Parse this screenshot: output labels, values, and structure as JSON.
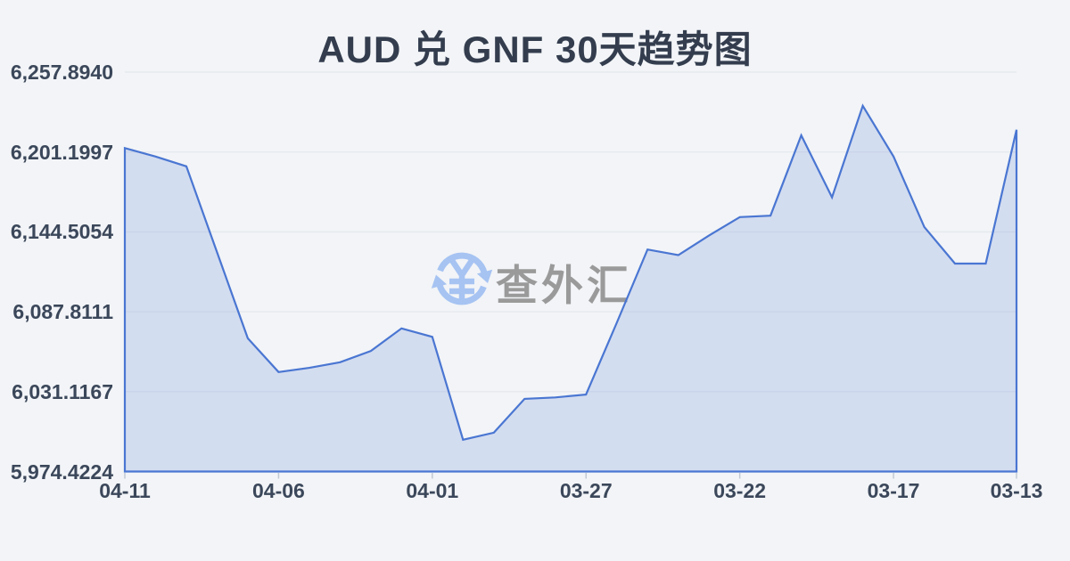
{
  "page": {
    "title": "AUD 兑 GNF 30天趋势图"
  },
  "watermark": {
    "text": "查外汇",
    "icon": "currency-sync-icon"
  },
  "colors": {
    "background": "#f2f4f7",
    "line": "#4a76d2",
    "fill": "rgba(74,118,210,0.18)",
    "grid": "#e6e9ee",
    "axis_label": "#3b475a",
    "title_text": "#333d4e",
    "tick": "#c2c9d4",
    "watermark_icon": "#a6c3f2",
    "watermark_text": "#9a9a9a"
  },
  "chart_data": {
    "type": "area",
    "title": "AUD 兑 GNF 30天趋势图",
    "series_name": "AUD/GNF",
    "x": [
      "04-11",
      "04-10",
      "04-09",
      "04-08",
      "04-07",
      "04-06",
      "04-05",
      "04-04",
      "04-03",
      "04-02",
      "04-01",
      "03-31",
      "03-30",
      "03-29",
      "03-28",
      "03-27",
      "03-26",
      "03-25",
      "03-24",
      "03-23",
      "03-22",
      "03-21",
      "03-20",
      "03-19",
      "03-18",
      "03-17",
      "03-16",
      "03-15",
      "03-14",
      "03-13"
    ],
    "values": [
      6204,
      6198,
      6191,
      6130,
      6069,
      6045,
      6048,
      6052,
      6060,
      6076,
      6070,
      5997,
      6002,
      6026,
      6027,
      6029,
      6080,
      6132,
      6128,
      6142,
      6155,
      6156,
      6213,
      6169,
      6234,
      6198,
      6148,
      6122,
      6122,
      6217
    ],
    "x_tick_labels": [
      "04-11",
      "04-06",
      "04-01",
      "03-27",
      "03-22",
      "03-17",
      "03-13"
    ],
    "x_tick_indices": [
      0,
      5,
      10,
      15,
      20,
      25,
      29
    ],
    "y_tick_labels": [
      "6,257.8940",
      "6,201.1997",
      "6,144.5054",
      "6,087.8111",
      "6,031.1167",
      "5,974.4224"
    ],
    "y_tick_values": [
      6257.894,
      6201.1997,
      6144.5054,
      6087.8111,
      6031.1167,
      5974.4224
    ],
    "ylim": [
      5974.4224,
      6257.894
    ],
    "grid": true,
    "legend": false
  }
}
